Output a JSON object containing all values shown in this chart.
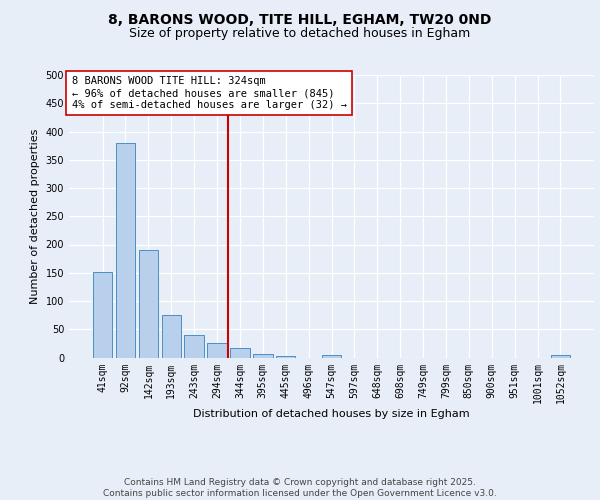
{
  "title1": "8, BARONS WOOD, TITE HILL, EGHAM, TW20 0ND",
  "title2": "Size of property relative to detached houses in Egham",
  "xlabel": "Distribution of detached houses by size in Egham",
  "ylabel": "Number of detached properties",
  "bar_labels": [
    "41sqm",
    "92sqm",
    "142sqm",
    "193sqm",
    "243sqm",
    "294sqm",
    "344sqm",
    "395sqm",
    "445sqm",
    "496sqm",
    "547sqm",
    "597sqm",
    "648sqm",
    "698sqm",
    "749sqm",
    "799sqm",
    "850sqm",
    "900sqm",
    "951sqm",
    "1001sqm",
    "1052sqm"
  ],
  "bar_values": [
    152,
    380,
    190,
    76,
    39,
    26,
    16,
    6,
    2,
    0,
    4,
    0,
    0,
    0,
    0,
    0,
    0,
    0,
    0,
    0,
    4
  ],
  "bar_color": "#b8d0eb",
  "bar_edge_color": "#4a90c4",
  "annotation_line_color": "#cc0000",
  "annotation_text": "8 BARONS WOOD TITE HILL: 324sqm\n← 96% of detached houses are smaller (845)\n4% of semi-detached houses are larger (32) →",
  "annotation_box_color": "#ffffff",
  "annotation_box_edge_color": "#cc0000",
  "ylim": [
    0,
    500
  ],
  "yticks": [
    0,
    50,
    100,
    150,
    200,
    250,
    300,
    350,
    400,
    450,
    500
  ],
  "background_color": "#e8eef8",
  "fig_background_color": "#e8eef8",
  "grid_color": "#ffffff",
  "footer": "Contains HM Land Registry data © Crown copyright and database right 2025.\nContains public sector information licensed under the Open Government Licence v3.0.",
  "title_fontsize": 10,
  "subtitle_fontsize": 9,
  "axis_label_fontsize": 8,
  "tick_fontsize": 7,
  "annotation_fontsize": 7.5,
  "footer_fontsize": 6.5
}
